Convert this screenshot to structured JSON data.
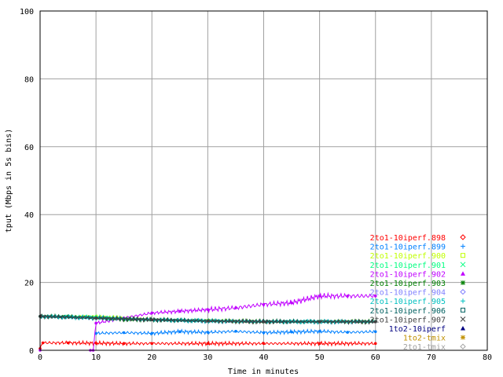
{
  "chart_data": {
    "type": "line",
    "title": "",
    "xlabel": "Time in minutes",
    "ylabel": "tput (Mbps in 5s bins)",
    "xlim": [
      0,
      80
    ],
    "ylim": [
      0,
      100
    ],
    "xticks": [
      0,
      10,
      20,
      30,
      40,
      50,
      60,
      70,
      80
    ],
    "yticks": [
      0,
      20,
      40,
      60,
      80,
      100
    ],
    "grid": true,
    "legend_position": "right, lower half inside plot",
    "series": [
      {
        "name": "2to1-10iperf.898",
        "color": "#ff0000",
        "marker": "diamond",
        "x": [
          0,
          0.5,
          5,
          10,
          15,
          20,
          30,
          40,
          50,
          60
        ],
        "y": [
          0.5,
          2.2,
          2.2,
          2.1,
          2.0,
          2.0,
          2.0,
          2.0,
          2.0,
          2.0
        ]
      },
      {
        "name": "2to1-10iperf.899",
        "color": "#0080ff",
        "marker": "plus",
        "x": [
          10,
          15,
          20,
          25,
          30,
          35,
          40,
          45,
          50,
          55,
          60
        ],
        "y": [
          5.0,
          5.2,
          5.0,
          5.5,
          5.3,
          5.6,
          5.2,
          5.4,
          5.6,
          5.3,
          5.5
        ]
      },
      {
        "name": "2to1-10iperf.900",
        "color": "#c0ff00",
        "marker": "square",
        "x": [
          0,
          10,
          20,
          30,
          40,
          50,
          60
        ],
        "y": [
          10.0,
          10.0,
          9.0,
          8.8,
          8.5,
          8.5,
          8.5
        ]
      },
      {
        "name": "2to1-10iperf.901",
        "color": "#00ff80",
        "marker": "cross",
        "x": [
          0,
          10,
          20,
          30,
          40,
          50,
          60
        ],
        "y": [
          10.0,
          9.8,
          9.0,
          8.7,
          8.5,
          8.4,
          8.5
        ]
      },
      {
        "name": "2to1-10iperf.902",
        "color": "#c000ff",
        "marker": "triangle",
        "x": [
          0,
          9,
          9.5,
          10,
          15,
          20,
          25,
          30,
          35,
          40,
          45,
          50,
          55,
          60
        ],
        "y": [
          0,
          0,
          0,
          8.0,
          9.5,
          11.0,
          11.5,
          12.0,
          12.5,
          13.5,
          14.0,
          16.0,
          16.0,
          16.0
        ]
      },
      {
        "name": "2to1-10iperf.903",
        "color": "#008000",
        "marker": "star",
        "x": [
          0,
          2,
          5,
          10,
          15,
          20,
          30,
          40,
          50,
          60
        ],
        "y": [
          10.0,
          10.0,
          10.0,
          9.5,
          9.0,
          9.0,
          8.7,
          8.5,
          8.5,
          8.5
        ]
      },
      {
        "name": "2to1-10iperf.904",
        "color": "#8080ff",
        "marker": "diamond",
        "x": [
          0,
          10,
          20,
          30,
          40,
          50,
          60
        ],
        "y": [
          10.0,
          9.5,
          9.0,
          8.6,
          8.5,
          8.4,
          8.4
        ]
      },
      {
        "name": "2to1-10iperf.905",
        "color": "#00c0c0",
        "marker": "plus",
        "x": [
          0,
          10,
          20,
          30,
          40,
          50,
          60
        ],
        "y": [
          10.0,
          9.5,
          9.0,
          8.6,
          8.4,
          8.4,
          8.4
        ]
      },
      {
        "name": "2to1-10iperf.906",
        "color": "#006060",
        "marker": "square",
        "x": [
          0,
          10,
          20,
          30,
          40,
          50,
          60
        ],
        "y": [
          10.0,
          9.6,
          9.0,
          8.7,
          8.5,
          8.5,
          8.5
        ]
      },
      {
        "name": "2to1-10iperf.907",
        "color": "#404040",
        "marker": "cross",
        "x": [
          0,
          10,
          20,
          30,
          40,
          50,
          60
        ],
        "y": [
          10.0,
          9.5,
          9.0,
          8.6,
          8.4,
          8.4,
          8.4
        ]
      },
      {
        "name": "1to2-10iperf",
        "color": "#000080",
        "marker": "triangle",
        "x": [],
        "y": []
      },
      {
        "name": "1to2-tmix",
        "color": "#c09000",
        "marker": "star",
        "x": [],
        "y": []
      },
      {
        "name": "2to1-tmix",
        "color": "#a0a0a0",
        "marker": "diamond",
        "x": [],
        "y": []
      }
    ]
  }
}
